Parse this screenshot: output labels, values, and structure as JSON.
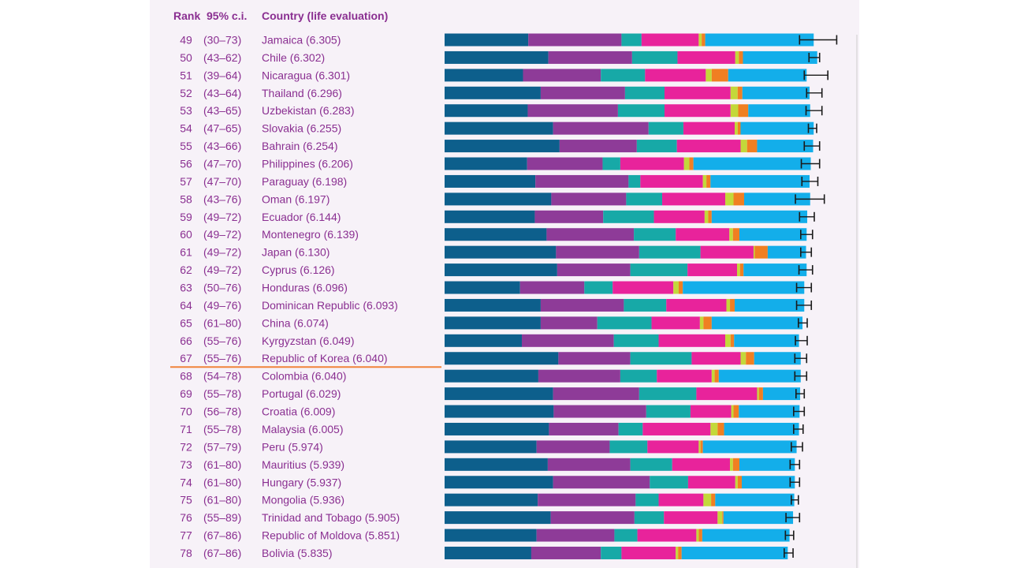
{
  "chart_data": {
    "type": "bar",
    "stacked": true,
    "orientation": "horizontal",
    "headers": {
      "rank": "Rank",
      "ci": "95% c.i.",
      "country": "Country (life evaluation)"
    },
    "segment_colors": [
      "#0d5f8c",
      "#8e3b98",
      "#17a9a7",
      "#e8239b",
      "#c3d83a",
      "#f07f22",
      "#13aeea"
    ],
    "error_bar_color": "#1a1a1a",
    "rows": [
      {
        "rank": "49",
        "ci": "(30–73)",
        "label": "Jamaica (6.305)",
        "segments": [
          1.42,
          1.58,
          0.34,
          0.97,
          0.05,
          0.06,
          1.84
        ],
        "err": [
          6.02,
          6.65
        ]
      },
      {
        "rank": "50",
        "ci": "(43–62)",
        "label": "Chile (6.302)",
        "segments": [
          1.76,
          1.42,
          0.77,
          0.98,
          0.06,
          0.07,
          1.26
        ],
        "err": [
          6.18,
          6.36
        ]
      },
      {
        "rank": "51",
        "ci": "(39–64)",
        "label": "Nicaragua (6.301)",
        "segments": [
          1.33,
          1.32,
          0.75,
          1.03,
          0.1,
          0.28,
          1.33
        ],
        "err": [
          6.1,
          6.5
        ]
      },
      {
        "rank": "52",
        "ci": "(43–64)",
        "label": "Thailand (6.296)",
        "segments": [
          1.63,
          1.43,
          0.67,
          1.12,
          0.12,
          0.08,
          1.14
        ],
        "err": [
          6.14,
          6.4
        ]
      },
      {
        "rank": "53",
        "ci": "(43–65)",
        "label": "Uzbekistan (6.283)",
        "segments": [
          1.41,
          1.53,
          0.79,
          1.12,
          0.13,
          0.17,
          1.05
        ],
        "err": [
          6.13,
          6.4
        ]
      },
      {
        "rank": "54",
        "ci": "(47–65)",
        "label": "Slovakia (6.255)",
        "segments": [
          1.84,
          1.62,
          0.59,
          0.87,
          0.05,
          0.05,
          1.24
        ],
        "err": [
          6.17,
          6.31
        ]
      },
      {
        "rank": "55",
        "ci": "(43–66)",
        "label": "Bahrain (6.254)",
        "segments": [
          1.95,
          1.31,
          0.68,
          1.08,
          0.11,
          0.17,
          0.95
        ],
        "err": [
          6.1,
          6.36
        ]
      },
      {
        "rank": "56",
        "ci": "(47–70)",
        "label": "Philippines (6.206)",
        "segments": [
          1.4,
          1.28,
          0.3,
          1.08,
          0.09,
          0.07,
          1.99
        ],
        "err": [
          6.05,
          6.36
        ]
      },
      {
        "rank": "57",
        "ci": "(47–70)",
        "label": "Paraguay (6.198)",
        "segments": [
          1.54,
          1.58,
          0.2,
          1.06,
          0.06,
          0.07,
          1.68
        ],
        "err": [
          6.06,
          6.33
        ]
      },
      {
        "rank": "58",
        "ci": "(43–76)",
        "label": "Oman (6.197)",
        "segments": [
          1.81,
          1.27,
          0.61,
          1.07,
          0.14,
          0.18,
          1.12
        ],
        "err": [
          5.95,
          6.44
        ]
      },
      {
        "rank": "59",
        "ci": "(49–72)",
        "label": "Ecuador (6.144)",
        "segments": [
          1.53,
          1.16,
          0.86,
          0.86,
          0.06,
          0.06,
          1.62
        ],
        "err": [
          6.02,
          6.27
        ]
      },
      {
        "rank": "60",
        "ci": "(49–72)",
        "label": "Montenegro (6.139)",
        "segments": [
          1.73,
          1.48,
          0.71,
          0.91,
          0.06,
          0.11,
          1.14
        ],
        "err": [
          6.04,
          6.24
        ]
      },
      {
        "rank": "61",
        "ci": "(49–72)",
        "label": "Japan (6.130)",
        "segments": [
          1.89,
          1.41,
          1.04,
          0.9,
          0.02,
          0.22,
          0.65
        ],
        "err": [
          6.04,
          6.22
        ]
      },
      {
        "rank": "62",
        "ci": "(49–72)",
        "label": "Cyprus (6.126)",
        "segments": [
          1.91,
          1.24,
          0.97,
          0.84,
          0.05,
          0.06,
          1.07
        ],
        "err": [
          6.01,
          6.24
        ]
      },
      {
        "rank": "63",
        "ci": "(50–76)",
        "label": "Honduras (6.096)",
        "segments": [
          1.28,
          1.09,
          0.48,
          1.03,
          0.09,
          0.07,
          2.06
        ],
        "err": [
          5.97,
          6.22
        ]
      },
      {
        "rank": "64",
        "ci": "(49–76)",
        "label": "Dominican Republic (6.093)",
        "segments": [
          1.63,
          1.41,
          0.72,
          1.02,
          0.06,
          0.08,
          1.18
        ],
        "err": [
          5.97,
          6.22
        ]
      },
      {
        "rank": "65",
        "ci": "(61–80)",
        "label": "China (6.074)",
        "segments": [
          1.63,
          0.96,
          0.92,
          0.82,
          0.06,
          0.14,
          1.54
        ],
        "err": [
          6.0,
          6.15
        ]
      },
      {
        "rank": "66",
        "ci": "(55–76)",
        "label": "Kyrgyzstan (6.049)",
        "segments": [
          1.31,
          1.56,
          0.76,
          1.13,
          0.09,
          0.06,
          1.1
        ],
        "err": [
          5.95,
          6.15
        ]
      },
      {
        "rank": "67",
        "ci": "(55–76)",
        "label": "Republic of Korea (6.040)",
        "segments": [
          1.93,
          1.22,
          1.04,
          0.83,
          0.09,
          0.14,
          0.79
        ],
        "err": [
          5.94,
          6.14
        ]
      },
      {
        "rank": "68",
        "ci": "(54–78)",
        "label": "Colombia (6.040)",
        "segments": [
          1.59,
          1.39,
          0.62,
          0.93,
          0.05,
          0.07,
          1.39
        ],
        "err": [
          5.94,
          6.14
        ]
      },
      {
        "rank": "69",
        "ci": "(55–78)",
        "label": "Portugal (6.029)",
        "segments": [
          1.84,
          1.46,
          0.97,
          1.03,
          0.03,
          0.07,
          0.63
        ],
        "err": [
          5.96,
          6.1
        ]
      },
      {
        "rank": "70",
        "ci": "(56–78)",
        "label": "Croatia (6.009)",
        "segments": [
          1.85,
          1.57,
          0.75,
          0.69,
          0.04,
          0.09,
          1.03
        ],
        "err": [
          5.92,
          6.1
        ]
      },
      {
        "rank": "71",
        "ci": "(55–78)",
        "label": "Malaysia (6.005)",
        "segments": [
          1.77,
          1.18,
          0.41,
          1.15,
          0.12,
          0.11,
          1.27
        ],
        "err": [
          5.92,
          6.08
        ]
      },
      {
        "rank": "72",
        "ci": "(57–79)",
        "label": "Peru (5.974)",
        "segments": [
          1.56,
          1.24,
          0.64,
          0.87,
          0.03,
          0.04,
          1.59
        ],
        "err": [
          5.88,
          6.07
        ]
      },
      {
        "rank": "73",
        "ci": "(61–80)",
        "label": "Mauritius (5.939)",
        "segments": [
          1.75,
          1.4,
          0.71,
          0.98,
          0.05,
          0.11,
          0.94
        ],
        "err": [
          5.86,
          6.02
        ]
      },
      {
        "rank": "74",
        "ci": "(61–80)",
        "label": "Hungary (5.937)",
        "segments": [
          1.84,
          1.64,
          0.65,
          0.8,
          0.04,
          0.07,
          0.9
        ],
        "err": [
          5.86,
          6.02
        ]
      },
      {
        "rank": "75",
        "ci": "(61–80)",
        "label": "Mongolia (5.936)",
        "segments": [
          1.58,
          1.66,
          0.39,
          0.76,
          0.13,
          0.07,
          1.34
        ],
        "err": [
          5.88,
          6.0
        ]
      },
      {
        "rank": "76",
        "ci": "(55–89)",
        "label": "Trinidad and Tobago (5.905)",
        "segments": [
          1.8,
          1.42,
          0.5,
          0.91,
          0.08,
          0.02,
          1.18
        ],
        "err": [
          5.79,
          6.02
        ]
      },
      {
        "rank": "77",
        "ci": "(67–86)",
        "label": "Republic of Moldova (5.851)",
        "segments": [
          1.56,
          1.32,
          0.39,
          1.0,
          0.04,
          0.06,
          1.48
        ],
        "err": [
          5.78,
          5.92
        ]
      },
      {
        "rank": "78",
        "ci": "(67–86)",
        "label": "Bolivia (5.835)",
        "segments": [
          1.47,
          1.18,
          0.35,
          0.92,
          0.04,
          0.06,
          1.8
        ],
        "err": [
          5.76,
          5.91
        ]
      }
    ],
    "highlight_after_row": "67",
    "highlight_color": "#f0833a",
    "grid": false
  }
}
